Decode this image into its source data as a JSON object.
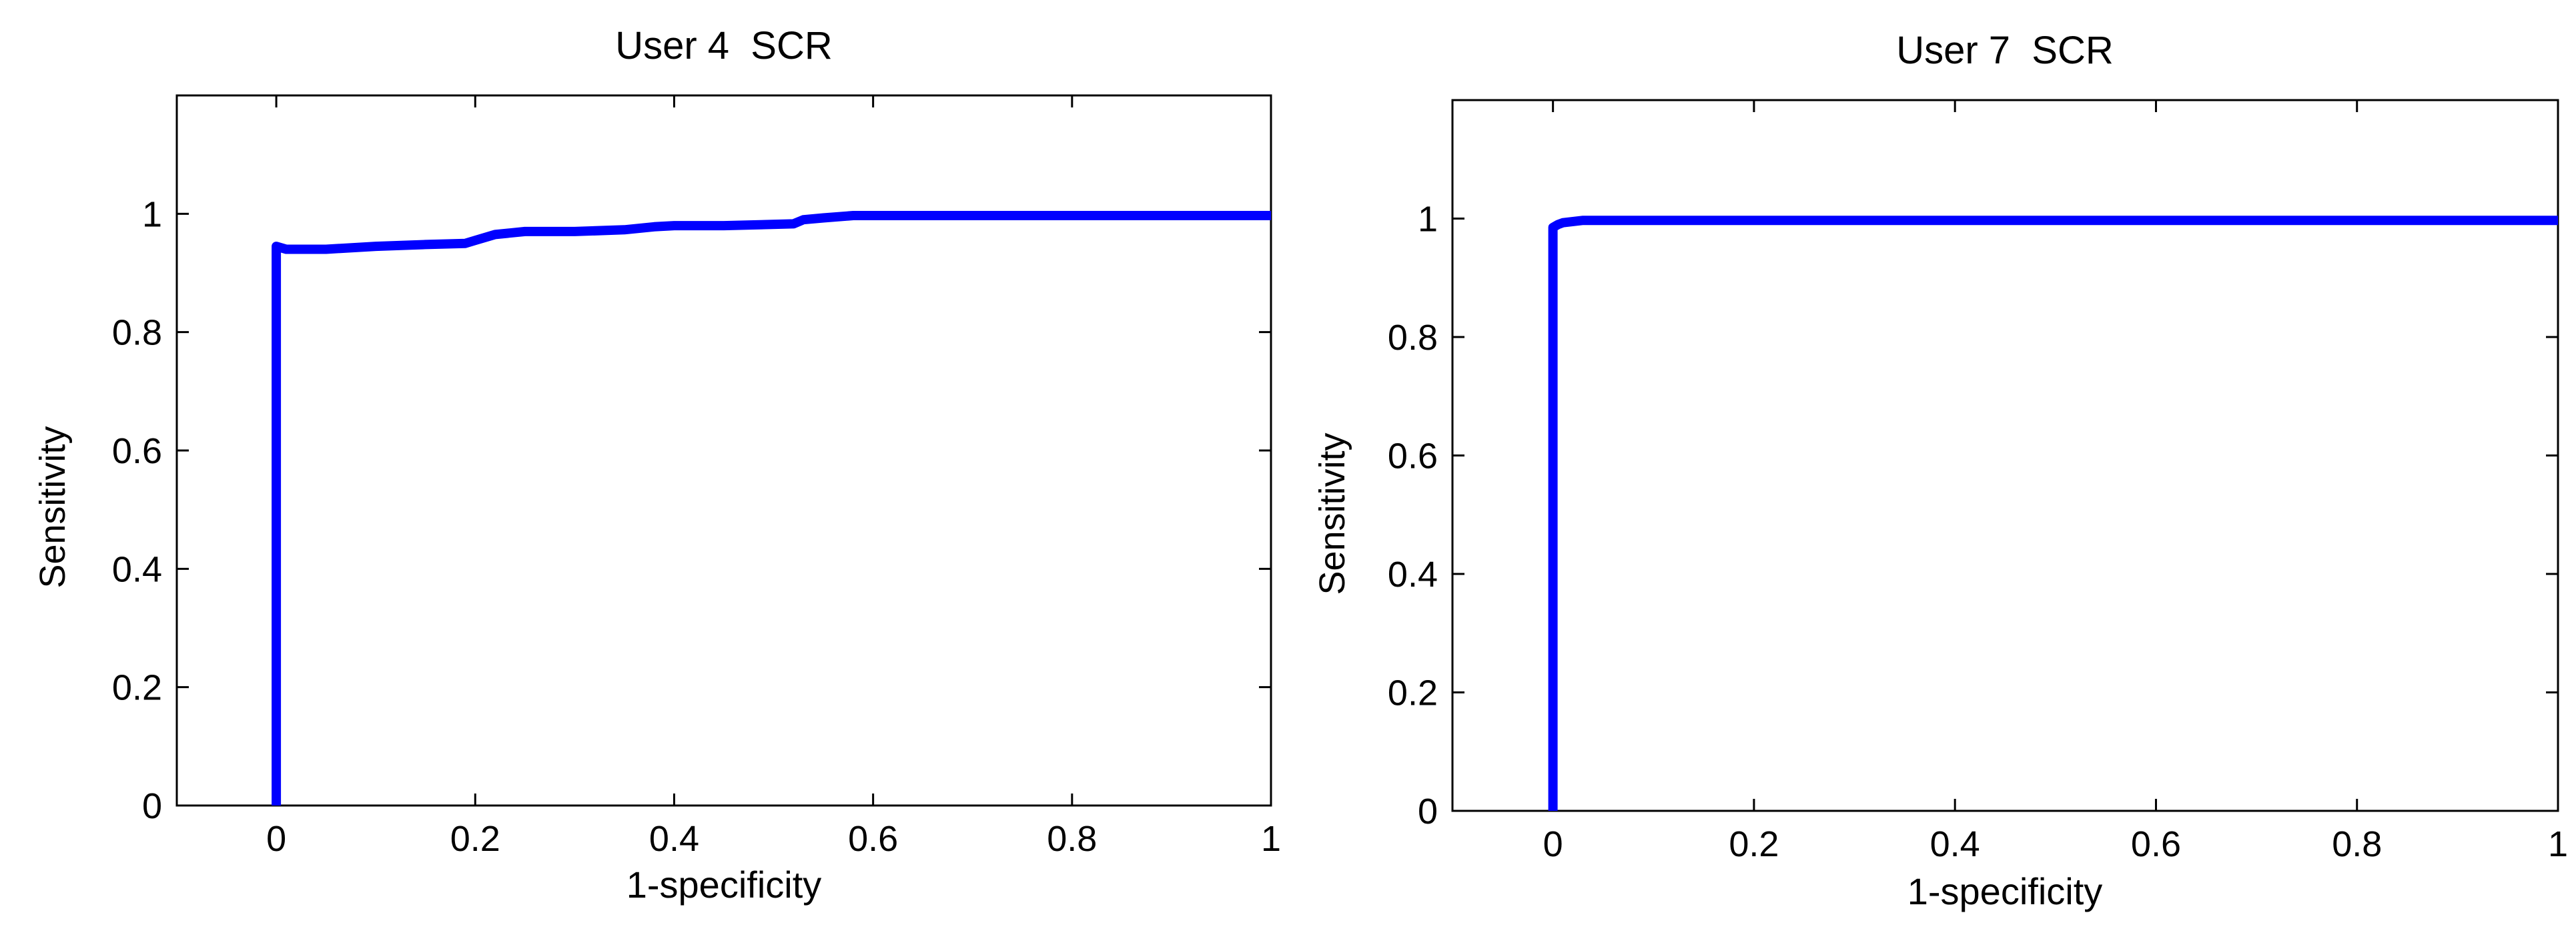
{
  "colors": {
    "background": "#ffffff",
    "axes": "#000000",
    "series": "#0000ff"
  },
  "chart_data": [
    {
      "type": "line",
      "title": "User 4  SCR",
      "xlabel": "1-specificity",
      "ylabel": "Sensitivity",
      "xlim": [
        -0.1,
        1
      ],
      "ylim": [
        0,
        1.2
      ],
      "xticks": [
        0,
        0.2,
        0.4,
        0.6,
        0.8,
        1
      ],
      "xtick_labels": [
        "0",
        "0.2",
        "0.4",
        "0.6",
        "0.8",
        "1"
      ],
      "yticks": [
        0,
        0.2,
        0.4,
        0.6,
        0.8,
        1
      ],
      "ytick_labels": [
        "0",
        "0.2",
        "0.4",
        "0.6",
        "0.8",
        "1"
      ],
      "grid": false,
      "series": [
        {
          "x": [
            0,
            0,
            0.01,
            0.05,
            0.1,
            0.15,
            0.19,
            0.2,
            0.22,
            0.25,
            0.3,
            0.35,
            0.38,
            0.4,
            0.45,
            0.52,
            0.53,
            0.55,
            0.58,
            0.6,
            0.7,
            0.8,
            0.9,
            1.0
          ],
          "y": [
            0,
            0.945,
            0.94,
            0.94,
            0.945,
            0.948,
            0.95,
            0.955,
            0.965,
            0.97,
            0.97,
            0.973,
            0.978,
            0.98,
            0.98,
            0.983,
            0.99,
            0.993,
            0.997,
            0.997,
            0.997,
            0.997,
            0.997,
            0.997
          ]
        }
      ]
    },
    {
      "type": "line",
      "title": "User 7  SCR",
      "xlabel": "1-specificity",
      "ylabel": "Sensitivity",
      "xlim": [
        -0.1,
        1
      ],
      "ylim": [
        0,
        1.2
      ],
      "xticks": [
        0,
        0.2,
        0.4,
        0.6,
        0.8,
        1
      ],
      "xtick_labels": [
        "0",
        "0.2",
        "0.4",
        "0.6",
        "0.8",
        "1"
      ],
      "yticks": [
        0,
        0.2,
        0.4,
        0.6,
        0.8,
        1
      ],
      "ytick_labels": [
        "0",
        "0.2",
        "0.4",
        "0.6",
        "0.8",
        "1"
      ],
      "grid": false,
      "series": [
        {
          "x": [
            0,
            0,
            0.005,
            0.01,
            0.03,
            0.2,
            0.4,
            0.6,
            0.8,
            1.0
          ],
          "y": [
            0,
            0.985,
            0.99,
            0.993,
            0.997,
            0.997,
            0.997,
            0.997,
            0.997,
            0.997
          ]
        }
      ]
    }
  ]
}
